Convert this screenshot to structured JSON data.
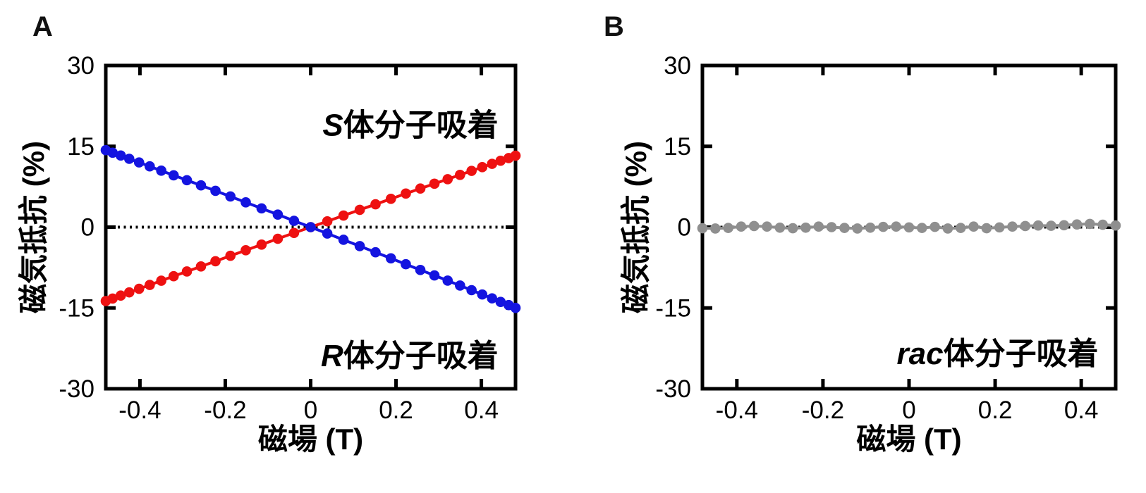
{
  "figure": {
    "panel_labels": [
      "A",
      "B"
    ]
  },
  "chart_data": [
    {
      "type": "line",
      "panel": "A",
      "title": "",
      "xlabel": "磁場 (T)",
      "ylabel": "磁気抵抗 (%)",
      "xlim": [
        -0.48,
        0.48
      ],
      "ylim": [
        -30,
        30
      ],
      "x_ticks": [
        -0.4,
        -0.2,
        0,
        0.2,
        0.4
      ],
      "x_tick_labels": [
        "-0.4",
        "-0.2",
        "0",
        "0.2",
        "0.4"
      ],
      "y_ticks": [
        30,
        15,
        0,
        -15,
        -30
      ],
      "y_tick_labels": [
        "30",
        "15",
        "0",
        "-15",
        "-30"
      ],
      "grid": false,
      "zero_line": "dotted-black",
      "markers": true,
      "legend_position": "in-plot-annotations",
      "series": [
        {
          "name": "S体分子吸着",
          "label_italic": "S",
          "label_rest": "体分子吸着",
          "color": "#ee1111",
          "label_anchor": {
            "x": 0.44,
            "y": 17.0,
            "align": "end"
          },
          "x": [
            -0.48,
            -0.464,
            -0.445,
            -0.425,
            -0.402,
            -0.377,
            -0.35,
            -0.321,
            -0.29,
            -0.257,
            -0.223,
            -0.188,
            -0.152,
            -0.115,
            -0.077,
            -0.039,
            0.0,
            0.039,
            0.077,
            0.115,
            0.152,
            0.188,
            0.223,
            0.257,
            0.29,
            0.321,
            0.35,
            0.377,
            0.402,
            0.425,
            0.445,
            0.464,
            0.48
          ],
          "y": [
            -13.72,
            -13.25,
            -12.71,
            -12.11,
            -11.45,
            -10.73,
            -9.94,
            -9.11,
            -8.23,
            -7.3,
            -6.33,
            -5.32,
            -4.29,
            -3.24,
            -2.16,
            -1.08,
            0.0,
            1.08,
            2.15,
            3.21,
            4.24,
            5.25,
            6.23,
            7.16,
            8.06,
            8.9,
            9.7,
            10.44,
            11.13,
            11.75,
            12.32,
            12.82,
            13.26
          ]
        },
        {
          "name": "R体分子吸着",
          "label_italic": "R",
          "label_rest": "体分子吸着",
          "color": "#1414e0",
          "label_anchor": {
            "x": 0.44,
            "y": -25.8,
            "align": "end"
          },
          "x": [
            -0.48,
            -0.464,
            -0.445,
            -0.425,
            -0.402,
            -0.377,
            -0.35,
            -0.321,
            -0.29,
            -0.257,
            -0.223,
            -0.188,
            -0.152,
            -0.115,
            -0.077,
            -0.039,
            0.0,
            0.039,
            0.077,
            0.115,
            0.152,
            0.188,
            0.223,
            0.257,
            0.29,
            0.321,
            0.35,
            0.377,
            0.402,
            0.425,
            0.445,
            0.464,
            0.48
          ],
          "y": [
            14.29,
            13.82,
            13.29,
            12.68,
            12.01,
            11.28,
            10.48,
            9.62,
            8.71,
            7.75,
            6.74,
            5.69,
            4.6,
            3.48,
            2.33,
            1.17,
            0.0,
            -1.18,
            -2.35,
            -3.52,
            -4.67,
            -5.79,
            -6.89,
            -7.95,
            -8.96,
            -9.93,
            -10.84,
            -11.7,
            -12.5,
            -13.22,
            -13.88,
            -14.47,
            -14.99
          ]
        }
      ]
    },
    {
      "type": "line",
      "panel": "B",
      "title": "",
      "xlabel": "磁場 (T)",
      "ylabel": "磁気抵抗 (%)",
      "xlim": [
        -0.48,
        0.48
      ],
      "ylim": [
        -30,
        30
      ],
      "x_ticks": [
        -0.4,
        -0.2,
        0,
        0.2,
        0.4
      ],
      "x_tick_labels": [
        "-0.4",
        "-0.2",
        "0",
        "0.2",
        "0.4"
      ],
      "y_ticks": [
        30,
        15,
        0,
        -15,
        -30
      ],
      "y_tick_labels": [
        "30",
        "15",
        "0",
        "-15",
        "-30"
      ],
      "grid": false,
      "zero_line": "dotted-black",
      "markers": true,
      "legend_position": "in-plot-annotations",
      "series": [
        {
          "name": "rac体分子吸着",
          "label_italic": "rac",
          "label_rest": "体分子吸着",
          "color": "#8f8f8f",
          "label_anchor": {
            "x": 0.44,
            "y": -25.4,
            "align": "end"
          },
          "x": [
            -0.48,
            -0.45,
            -0.42,
            -0.39,
            -0.36,
            -0.33,
            -0.3,
            -0.27,
            -0.24,
            -0.21,
            -0.18,
            -0.15,
            -0.12,
            -0.09,
            -0.06,
            -0.03,
            0.0,
            0.03,
            0.06,
            0.09,
            0.12,
            0.15,
            0.18,
            0.21,
            0.24,
            0.27,
            0.3,
            0.33,
            0.36,
            0.39,
            0.42,
            0.45,
            0.48
          ],
          "y": [
            -0.2,
            -0.25,
            -0.15,
            0.1,
            0.2,
            0.1,
            -0.1,
            -0.2,
            -0.1,
            0.1,
            0.0,
            -0.15,
            -0.25,
            -0.1,
            0.05,
            0.1,
            -0.05,
            -0.15,
            0.05,
            -0.25,
            -0.15,
            0.1,
            -0.2,
            -0.05,
            0.1,
            0.2,
            0.3,
            0.25,
            0.35,
            0.5,
            0.6,
            0.45,
            0.3
          ]
        }
      ]
    }
  ]
}
